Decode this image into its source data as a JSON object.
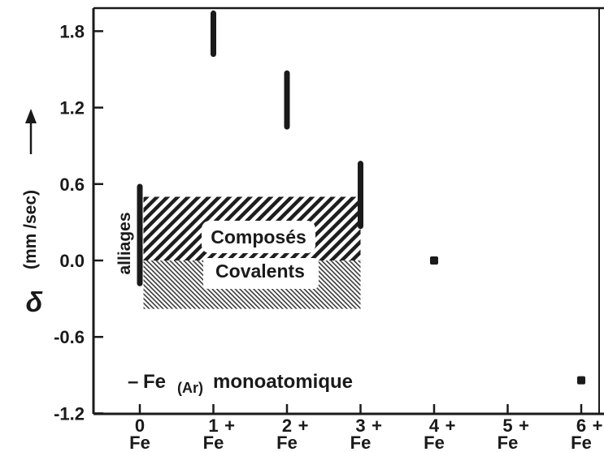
{
  "chart_data": {
    "type": "scatter",
    "title": "",
    "xlabel": "",
    "ylabel": "δ (mm /sec)",
    "ylim": [
      -1.2,
      2.0
    ],
    "xlim": [
      -0.55,
      6.3
    ],
    "grid": false,
    "legend": "none",
    "y_ticks": [
      "1.8",
      "1.2",
      "0.6",
      "0.0",
      "-0.6",
      "-1.2"
    ],
    "y_tick_values": [
      1.8,
      1.2,
      0.6,
      0.0,
      -0.6,
      -1.2
    ],
    "x_ticks": [
      {
        "x": 0,
        "charge": "0",
        "element": "Fe"
      },
      {
        "x": 1,
        "charge": "1+",
        "element": "Fe"
      },
      {
        "x": 2,
        "charge": "2+",
        "element": "Fe"
      },
      {
        "x": 3,
        "charge": "3+",
        "element": "Fe"
      },
      {
        "x": 4,
        "charge": "4+",
        "element": "Fe"
      },
      {
        "x": 5,
        "charge": "5+",
        "element": "Fe"
      },
      {
        "x": 6,
        "charge": "6+",
        "element": "Fe"
      }
    ],
    "ranges": [
      {
        "x": 0.0,
        "ymin": -0.18,
        "ymax": 0.58,
        "label": "alliages"
      },
      {
        "x": 1.0,
        "ymin": 1.62,
        "ymax": 1.94
      },
      {
        "x": 2.0,
        "ymin": 1.05,
        "ymax": 1.47
      },
      {
        "x": 3.0,
        "ymin": 0.27,
        "ymax": 0.76
      }
    ],
    "points": [
      {
        "x": 4.0,
        "y": 0.0
      },
      {
        "x": 6.0,
        "y": -0.94
      }
    ],
    "regions": [
      {
        "label": "Composés",
        "x0": 0.05,
        "x1": 3.0,
        "y0": 0.0,
        "y1": 0.5,
        "pattern": "hatch-dense"
      },
      {
        "label": "Covalents",
        "x0": 0.05,
        "x1": 3.0,
        "y0": -0.38,
        "y1": 0.0,
        "pattern": "hatch-fine"
      }
    ],
    "annotations": [
      "– Fe (Ar) monoatomique"
    ]
  },
  "labels": {
    "ylabel_symbol": "δ",
    "ylabel_unit": "(mm /sec)",
    "alliages": "alliages",
    "composes": "Composés",
    "covalents": "Covalents",
    "annotation_dash": "–",
    "annotation_fe": "Fe",
    "annotation_ar": "(Ar)",
    "annotation_rest": "monoatomique"
  }
}
